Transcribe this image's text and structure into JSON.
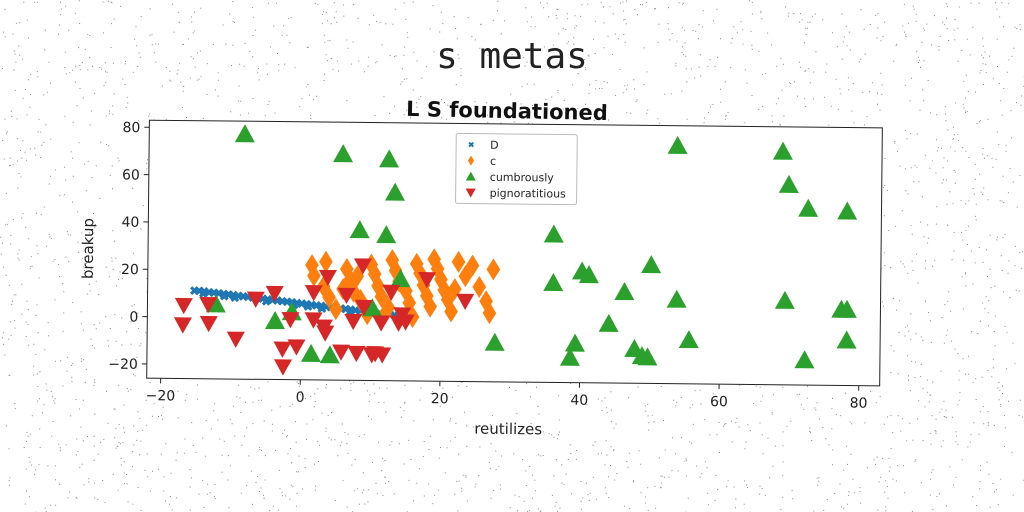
{
  "figure_title": "s metas",
  "chart_data": {
    "type": "scatter",
    "title": "L S foundationed",
    "xlabel": "reutilizes",
    "ylabel": "breakup",
    "xlim": [
      -22,
      83
    ],
    "ylim": [
      -26,
      83
    ],
    "xticks": [
      -20,
      0,
      20,
      40,
      60,
      80
    ],
    "yticks": [
      -20,
      0,
      20,
      40,
      60,
      80
    ],
    "grid": false,
    "legend_position": "top-center",
    "series": [
      {
        "name": "D",
        "marker": "x",
        "color": "#1f77b4",
        "points": [
          [
            -15.3,
            11.2
          ],
          [
            -14.6,
            11.1
          ],
          [
            -13.9,
            10.9
          ],
          [
            -13.2,
            10.6
          ],
          [
            -12.5,
            10.4
          ],
          [
            -11.8,
            10.2
          ],
          [
            -11.1,
            9.9
          ],
          [
            -10.4,
            9.7
          ],
          [
            -9.7,
            9.5
          ],
          [
            -9.0,
            9.2
          ],
          [
            -8.3,
            9.0
          ],
          [
            -7.6,
            8.8
          ],
          [
            -6.9,
            8.5
          ],
          [
            -6.2,
            8.3
          ],
          [
            -5.5,
            8.1
          ],
          [
            -4.8,
            7.8
          ],
          [
            -4.1,
            7.6
          ],
          [
            -3.4,
            7.4
          ],
          [
            -2.7,
            7.1
          ],
          [
            -2.0,
            6.9
          ],
          [
            -1.3,
            6.7
          ],
          [
            -0.6,
            6.4
          ],
          [
            0.1,
            6.2
          ],
          [
            0.8,
            6.0
          ],
          [
            1.5,
            5.7
          ],
          [
            2.2,
            5.5
          ],
          [
            2.9,
            5.3
          ],
          [
            3.6,
            5.0
          ],
          [
            4.3,
            4.8
          ],
          [
            5.0,
            4.6
          ],
          [
            5.7,
            4.3
          ],
          [
            6.4,
            4.1
          ],
          [
            7.1,
            3.9
          ],
          [
            7.8,
            3.6
          ],
          [
            8.5,
            3.4
          ],
          [
            9.2,
            3.2
          ],
          [
            9.9,
            2.9
          ],
          [
            10.6,
            2.7
          ],
          [
            11.3,
            2.5
          ],
          [
            12.0,
            2.2
          ],
          [
            12.7,
            2.0
          ],
          [
            13.4,
            1.8
          ],
          [
            14.1,
            1.5
          ],
          [
            14.8,
            1.3
          ],
          [
            15.5,
            1.1
          ],
          [
            -14.0,
            10.0
          ],
          [
            -9.5,
            8.4
          ],
          [
            -5.0,
            7.0
          ],
          [
            -1.0,
            5.6
          ],
          [
            3.0,
            4.2
          ],
          [
            7.0,
            2.8
          ],
          [
            11.0,
            1.6
          ],
          [
            14.0,
            0.6
          ],
          [
            -11.0,
            9.0
          ],
          [
            1.0,
            5.0
          ]
        ]
      },
      {
        "name": "c",
        "marker": "diamond",
        "color": "#ff7f0e",
        "points": [
          [
            1.5,
            22.5
          ],
          [
            1.8,
            18.0
          ],
          [
            3.2,
            13.5
          ],
          [
            4.0,
            9.0
          ],
          [
            5.0,
            4.0
          ],
          [
            6.5,
            21.0
          ],
          [
            7.0,
            16.5
          ],
          [
            7.5,
            11.5
          ],
          [
            8.5,
            8.0
          ],
          [
            9.5,
            2.0
          ],
          [
            10.0,
            23.0
          ],
          [
            10.5,
            19.0
          ],
          [
            11.0,
            14.0
          ],
          [
            11.5,
            9.5
          ],
          [
            12.5,
            5.0
          ],
          [
            13.5,
            20.5
          ],
          [
            14.0,
            16.0
          ],
          [
            15.0,
            12.0
          ],
          [
            15.5,
            7.0
          ],
          [
            16.5,
            23.5
          ],
          [
            17.0,
            19.5
          ],
          [
            17.5,
            14.5
          ],
          [
            18.0,
            10.0
          ],
          [
            18.5,
            5.5
          ],
          [
            19.5,
            21.5
          ],
          [
            20.0,
            17.0
          ],
          [
            20.5,
            12.5
          ],
          [
            21.0,
            8.5
          ],
          [
            21.5,
            3.5
          ],
          [
            22.5,
            24.5
          ],
          [
            23.5,
            18.5
          ],
          [
            24.5,
            23.0
          ],
          [
            25.5,
            14.0
          ],
          [
            26.5,
            8.0
          ],
          [
            27.0,
            3.0
          ],
          [
            27.5,
            21.5
          ],
          [
            3.5,
            24.0
          ],
          [
            13.0,
            25.0
          ],
          [
            19.0,
            25.5
          ],
          [
            16.0,
            1.0
          ],
          [
            8.0,
            18.0
          ],
          [
            12.0,
            2.0
          ],
          [
            22.0,
            13.0
          ],
          [
            6.0,
            12.5
          ]
        ]
      },
      {
        "name": "cumbrously",
        "marker": "triangle-up",
        "color": "#2ca02c",
        "points": [
          [
            -8.3,
            77.5
          ],
          [
            -12.2,
            5.5
          ],
          [
            -3.7,
            -1.3
          ],
          [
            -1.3,
            2.5
          ],
          [
            1.5,
            -15.0
          ],
          [
            4.2,
            -15.5
          ],
          [
            5.8,
            69.5
          ],
          [
            8.3,
            37.5
          ],
          [
            10.2,
            4.5
          ],
          [
            12.1,
            35.5
          ],
          [
            12.4,
            67.5
          ],
          [
            13.3,
            53.5
          ],
          [
            14.2,
            17.0
          ],
          [
            27.8,
            -9.5
          ],
          [
            36.1,
            36.5
          ],
          [
            36.1,
            16.0
          ],
          [
            38.6,
            -15.5
          ],
          [
            39.3,
            -9.5
          ],
          [
            40.2,
            21.0
          ],
          [
            41.2,
            19.5
          ],
          [
            44.1,
            -1.0
          ],
          [
            46.3,
            12.5
          ],
          [
            47.8,
            -11.5
          ],
          [
            48.9,
            -14.5
          ],
          [
            49.7,
            -15.0
          ],
          [
            50.1,
            24.0
          ],
          [
            53.7,
            74.5
          ],
          [
            53.8,
            9.5
          ],
          [
            55.6,
            -7.5
          ],
          [
            68.8,
            72.5
          ],
          [
            69.3,
            9.5
          ],
          [
            69.7,
            58.5
          ],
          [
            72.5,
            48.5
          ],
          [
            72.2,
            -15.5
          ],
          [
            77.4,
            6.0
          ],
          [
            78.1,
            47.5
          ],
          [
            78.2,
            6.0
          ],
          [
            78.2,
            -7.0
          ]
        ]
      },
      {
        "name": "pignoratitious",
        "marker": "triangle-down",
        "color": "#d62728",
        "points": [
          [
            -16.8,
            5.0
          ],
          [
            -16.9,
            -3.2
          ],
          [
            -13.3,
            5.5
          ],
          [
            -13.2,
            -2.5
          ],
          [
            -9.3,
            -9.0
          ],
          [
            -6.5,
            8.0
          ],
          [
            -3.8,
            10.5
          ],
          [
            -2.6,
            -13.0
          ],
          [
            -2.5,
            -20.5
          ],
          [
            -1.5,
            -0.5
          ],
          [
            -0.6,
            -12.0
          ],
          [
            1.8,
            -0.5
          ],
          [
            1.8,
            11.0
          ],
          [
            3.3,
            -3.5
          ],
          [
            3.5,
            -6.0
          ],
          [
            3.8,
            17.5
          ],
          [
            5.8,
            -14.0
          ],
          [
            7.5,
            -1.0
          ],
          [
            8.0,
            -14.5
          ],
          [
            8.8,
            22.5
          ],
          [
            10.2,
            -15.0
          ],
          [
            10.7,
            -14.5
          ],
          [
            11.7,
            -15.0
          ],
          [
            12.9,
            11.5
          ],
          [
            14.0,
            -1.5
          ],
          [
            15.0,
            -1.0
          ],
          [
            23.5,
            8.0
          ],
          [
            18.0,
            17.0
          ],
          [
            6.5,
            10.0
          ],
          [
            11.5,
            -1.5
          ],
          [
            14.5,
            2.0
          ],
          [
            9.0,
            5.0
          ]
        ]
      }
    ]
  }
}
